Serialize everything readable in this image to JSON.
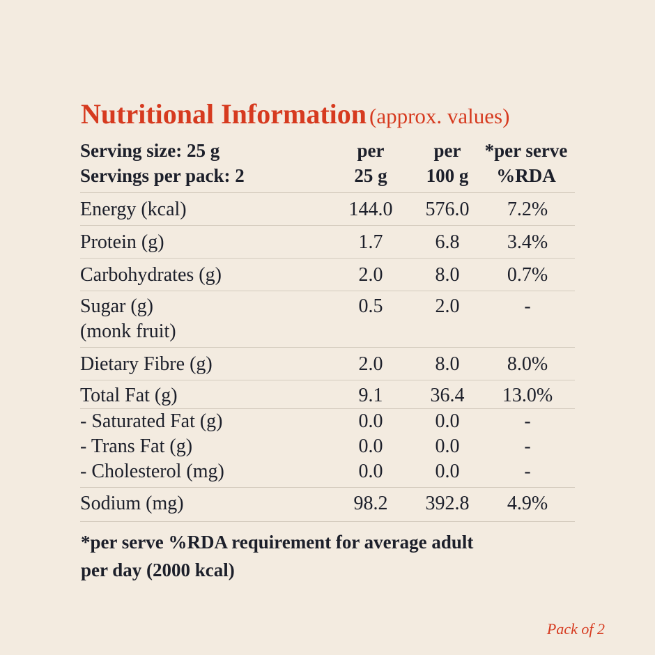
{
  "title": {
    "main": "Nutritional Information",
    "sub": "(approx. values)"
  },
  "header": {
    "serving_size": "Serving size: 25 g",
    "servings_per_pack": "Servings per pack: 2",
    "col1": [
      "per",
      "25 g"
    ],
    "col2": [
      "per",
      "100 g"
    ],
    "col3": [
      "*per serve",
      "%RDA"
    ]
  },
  "rows": [
    {
      "label": "Energy (kcal)",
      "v1": "144.0",
      "v2": "576.0",
      "v3": "7.2%"
    },
    {
      "label": "Protein (g)",
      "v1": "1.7",
      "v2": "6.8",
      "v3": "3.4%"
    },
    {
      "label": "Carbohydrates (g)",
      "v1": "2.0",
      "v2": "8.0",
      "v3": "0.7%"
    },
    {
      "label": "Sugar (g)",
      "label2": "(monk fruit)",
      "v1": "0.5",
      "v2": "2.0",
      "v3": "-"
    },
    {
      "label": "Dietary Fibre (g)",
      "v1": "2.0",
      "v2": "8.0",
      "v3": "8.0%"
    },
    {
      "label": "Total Fat (g)",
      "v1": "9.1",
      "v2": "36.4",
      "v3": "13.0%"
    },
    {
      "label": "- Saturated Fat (g)",
      "v1": "0.0",
      "v2": "0.0",
      "v3": "-"
    },
    {
      "label": "- Trans Fat (g)",
      "v1": "0.0",
      "v2": "0.0",
      "v3": "-"
    },
    {
      "label": "- Cholesterol (mg)",
      "v1": "0.0",
      "v2": "0.0",
      "v3": "-"
    },
    {
      "label": "Sodium (mg)",
      "v1": "98.2",
      "v2": "392.8",
      "v3": "4.9%"
    }
  ],
  "footnote": [
    "*per serve %RDA requirement for average adult",
    "per day (2000 kcal)"
  ],
  "pack_label": "Pack of 2"
}
